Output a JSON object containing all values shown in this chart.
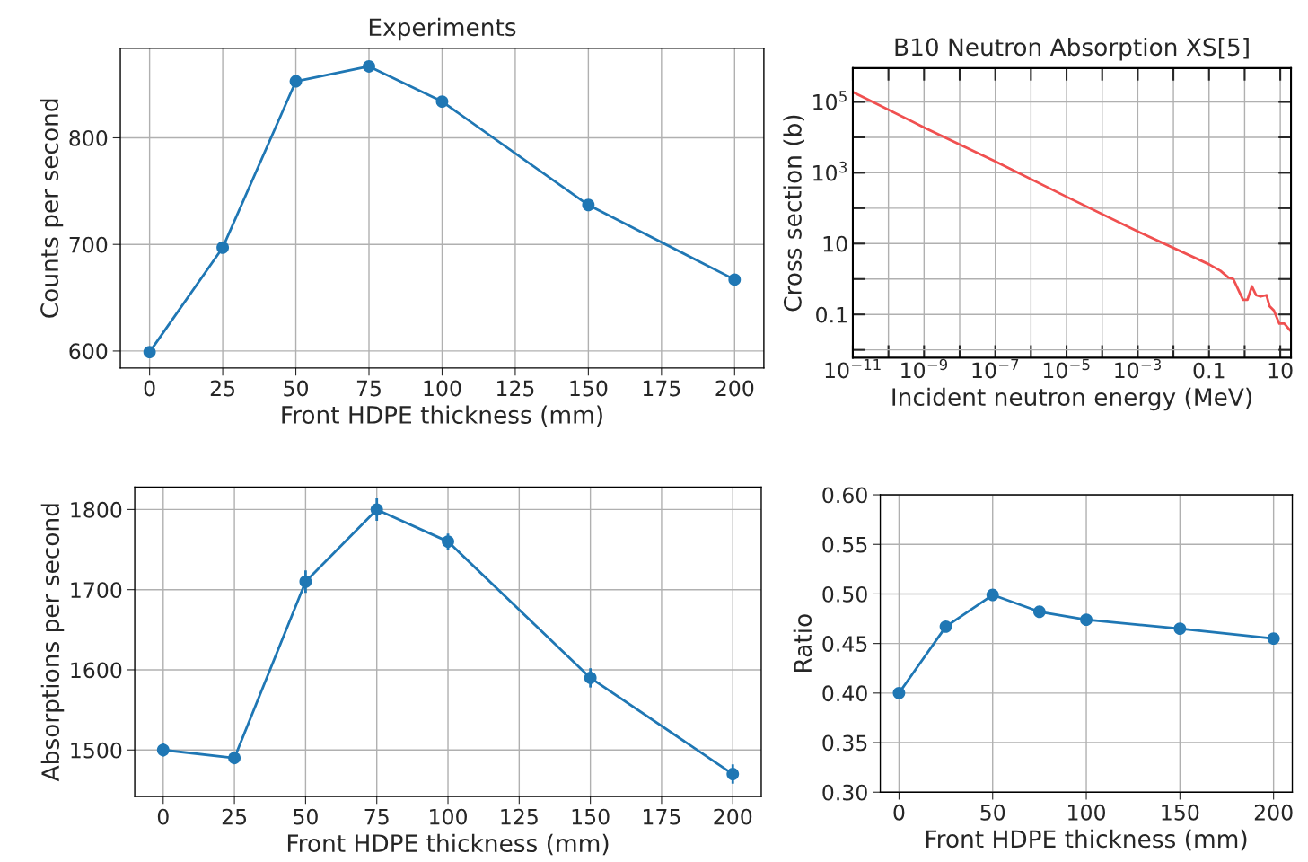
{
  "chart_data": [
    {
      "type": "line",
      "title": "Experiments",
      "xlabel": "Front HDPE thickness (mm)",
      "ylabel": "Counts per second",
      "x": [
        0,
        25,
        50,
        75,
        100,
        150,
        200
      ],
      "series": [
        {
          "color": "#1f77b4",
          "values": [
            599,
            697,
            853,
            867,
            834,
            737,
            667
          ]
        }
      ],
      "xlim": [
        -10,
        210
      ],
      "xticks": [
        0,
        25,
        50,
        75,
        100,
        125,
        150,
        175,
        200
      ],
      "ylim": [
        584,
        884
      ],
      "yticks": [
        600,
        700,
        800
      ],
      "grid": true,
      "marker": "circle",
      "line_style": "solid"
    },
    {
      "type": "line",
      "title": "B10 Neutron Absorption XS[5]",
      "xlabel": "Incident neutron energy (MeV)",
      "ylabel": "Cross section (b)",
      "log": "xy",
      "series": [
        {
          "color": "#f05050",
          "x": [
            1e-11,
            1e-09,
            1e-07,
            1e-05,
            0.001,
            0.1,
            0.21,
            0.35,
            0.48,
            0.9,
            1.2,
            1.6,
            2.1,
            2.8,
            4.1,
            5.0,
            6.6,
            9.4,
            13,
            19
          ],
          "values": [
            190000,
            19000,
            2100,
            210,
            22,
            2.6,
            1.7,
            1.1,
            1.0,
            0.26,
            0.26,
            0.62,
            0.35,
            0.32,
            0.35,
            0.17,
            0.13,
            0.055,
            0.055,
            0.035
          ]
        }
      ],
      "xlim": [
        1e-11,
        20
      ],
      "xticks": [
        {
          "value": 1e-11,
          "label": "10$^{−11}$"
        },
        {
          "value": 1e-10,
          "label": null
        },
        {
          "value": 1e-09,
          "label": "10$^{−9}$"
        },
        {
          "value": 1e-08,
          "label": null
        },
        {
          "value": 1e-07,
          "label": "10$^{−7}$"
        },
        {
          "value": 1e-06,
          "label": null
        },
        {
          "value": 1e-05,
          "label": "10$^{−5}$"
        },
        {
          "value": 0.0001,
          "label": null
        },
        {
          "value": 0.001,
          "label": "10$^{−3}$"
        },
        {
          "value": 0.01,
          "label": null
        },
        {
          "value": 0.1,
          "label": "0.1"
        },
        {
          "value": 1,
          "label": null
        },
        {
          "value": 10,
          "label": "10"
        }
      ],
      "ylim": [
        0.006,
        900000
      ],
      "yticks": [
        {
          "value": 0.01,
          "label": null
        },
        {
          "value": 0.1,
          "label": "0.1"
        },
        {
          "value": 1,
          "label": null
        },
        {
          "value": 10,
          "label": "10"
        },
        {
          "value": 100,
          "label": null
        },
        {
          "value": 1000,
          "label": "10$^{3}$"
        },
        {
          "value": 10000,
          "label": null
        },
        {
          "value": 100000,
          "label": "10$^{5}$"
        }
      ],
      "grid": true,
      "marker": "none",
      "line_style": "solid"
    },
    {
      "type": "line",
      "xlabel": "Front HDPE thickness (mm)",
      "ylabel": "Absorptions per second",
      "x": [
        0,
        25,
        50,
        75,
        100,
        150,
        200
      ],
      "series": [
        {
          "color": "#1f77b4",
          "values": [
            1500,
            1490,
            1710,
            1800,
            1760,
            1590,
            1470
          ],
          "errors": [
            8,
            6,
            14,
            14,
            10,
            12,
            12
          ]
        }
      ],
      "xlim": [
        -10,
        210
      ],
      "xticks": [
        0,
        25,
        50,
        75,
        100,
        125,
        150,
        175,
        200
      ],
      "ylim": [
        1442,
        1828
      ],
      "yticks": [
        1500,
        1600,
        1700,
        1800
      ],
      "grid": true,
      "marker": "circle",
      "line_style": "solid"
    },
    {
      "type": "line",
      "xlabel": "Front HDPE thickness (mm)",
      "ylabel": "Ratio",
      "x": [
        0,
        25,
        50,
        75,
        100,
        150,
        200
      ],
      "series": [
        {
          "color": "#1f77b4",
          "values": [
            0.4,
            0.467,
            0.499,
            0.482,
            0.474,
            0.465,
            0.455
          ]
        }
      ],
      "xlim": [
        -10,
        210
      ],
      "xticks": [
        0,
        50,
        100,
        150,
        200
      ],
      "ylim": [
        0.3,
        0.6
      ],
      "yticks": [
        {
          "value": 0.3,
          "label": "0.30"
        },
        {
          "value": 0.35,
          "label": "0.35"
        },
        {
          "value": 0.4,
          "label": "0.40"
        },
        {
          "value": 0.45,
          "label": "0.45"
        },
        {
          "value": 0.5,
          "label": "0.50"
        },
        {
          "value": 0.55,
          "label": "0.55"
        },
        {
          "value": 0.6,
          "label": "0.60"
        }
      ],
      "grid": true,
      "marker": "circle",
      "line_style": "solid"
    }
  ]
}
